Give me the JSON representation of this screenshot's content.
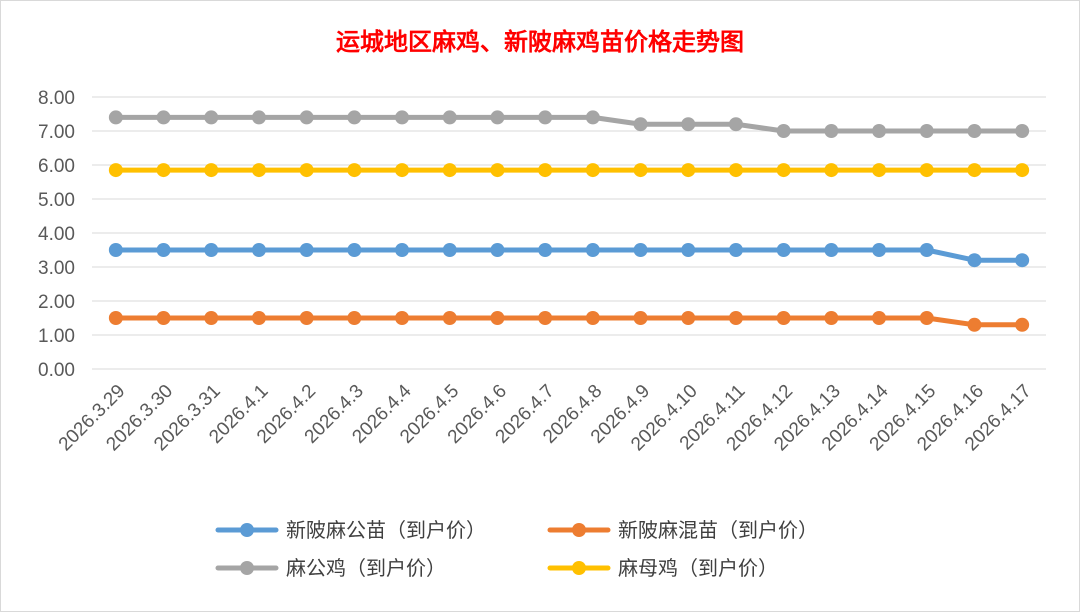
{
  "chart_data": {
    "type": "line",
    "title": "运城地区麻鸡、新陂麻鸡苗价格走势图",
    "xlabel": "",
    "ylabel": "",
    "ylim": [
      0,
      8
    ],
    "yticks": [
      "0.00",
      "1.00",
      "2.00",
      "3.00",
      "4.00",
      "5.00",
      "6.00",
      "7.00",
      "8.00"
    ],
    "grid": true,
    "legend_position": "bottom",
    "categories": [
      "2026.3.29",
      "2026.3.30",
      "2026.3.31",
      "2026.4.1",
      "2026.4.2",
      "2026.4.3",
      "2026.4.4",
      "2026.4.5",
      "2026.4.6",
      "2026.4.7",
      "2026.4.8",
      "2026.4.9",
      "2026.4.10",
      "2026.4.11",
      "2026.4.12",
      "2026.4.13",
      "2026.4.14",
      "2026.4.15",
      "2026.4.16",
      "2026.4.17"
    ],
    "series": [
      {
        "name": "新陂麻公苗（到户价）",
        "color": "#5b9bd5",
        "values": [
          3.5,
          3.5,
          3.5,
          3.5,
          3.5,
          3.5,
          3.5,
          3.5,
          3.5,
          3.5,
          3.5,
          3.5,
          3.5,
          3.5,
          3.5,
          3.5,
          3.5,
          3.5,
          3.2,
          3.2
        ]
      },
      {
        "name": "新陂麻混苗（到户价）",
        "color": "#ed7d31",
        "values": [
          1.5,
          1.5,
          1.5,
          1.5,
          1.5,
          1.5,
          1.5,
          1.5,
          1.5,
          1.5,
          1.5,
          1.5,
          1.5,
          1.5,
          1.5,
          1.5,
          1.5,
          1.5,
          1.3,
          1.3
        ]
      },
      {
        "name": "麻公鸡（到户价）",
        "color": "#a5a5a5",
        "values": [
          7.4,
          7.4,
          7.4,
          7.4,
          7.4,
          7.4,
          7.4,
          7.4,
          7.4,
          7.4,
          7.4,
          7.2,
          7.2,
          7.2,
          7.0,
          7.0,
          7.0,
          7.0,
          7.0,
          7.0
        ]
      },
      {
        "name": "麻母鸡（到户价）",
        "color": "#ffc000",
        "values": [
          5.85,
          5.85,
          5.85,
          5.85,
          5.85,
          5.85,
          5.85,
          5.85,
          5.85,
          5.85,
          5.85,
          5.85,
          5.85,
          5.85,
          5.85,
          5.85,
          5.85,
          5.85,
          5.85,
          5.85
        ]
      }
    ]
  }
}
